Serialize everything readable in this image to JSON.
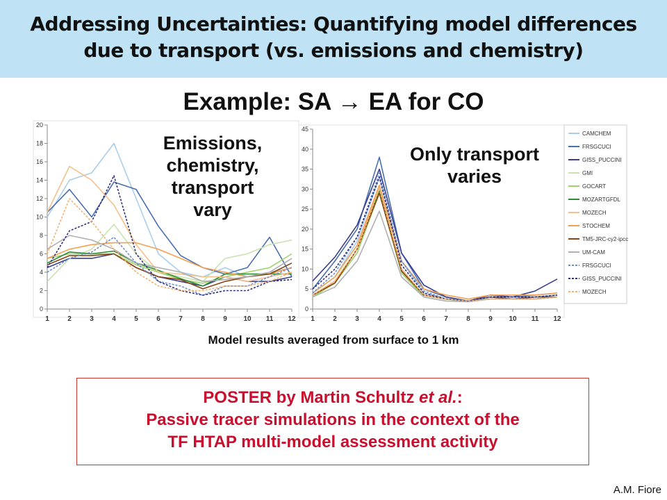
{
  "header": {
    "line1": "Addressing Uncertainties: Quantifying model differences",
    "line2": "due to transport (vs. emissions and chemistry)"
  },
  "example_title": "Example: SA → EA for CO",
  "annotations": {
    "left": [
      "Emissions,",
      "chemistry,",
      "transport",
      "vary"
    ],
    "right": [
      "Only transport",
      "varies"
    ]
  },
  "caption": "Model results averaged from surface to 1 km",
  "poster": {
    "line1_prefix": "POSTER by Martin Schultz ",
    "line1_italic": "et al.",
    "line1_suffix": ":",
    "line2": "Passive tracer simulations in the context of the",
    "line3": "TF HTAP multi-model assessment activity"
  },
  "footer": "A.M. Fiore",
  "chart_data": [
    {
      "type": "line",
      "x": [
        1,
        2,
        3,
        4,
        5,
        6,
        7,
        8,
        9,
        10,
        11,
        12
      ],
      "ylim": [
        0,
        20
      ],
      "yticks": [
        0,
        2,
        4,
        6,
        8,
        10,
        12,
        14,
        16,
        18,
        20
      ],
      "series": [
        {
          "color": "#a9cdea",
          "dash": false,
          "values": [
            10,
            14,
            14.8,
            18,
            12,
            6,
            4,
            3.5,
            4.5,
            3.5,
            4,
            4.5
          ]
        },
        {
          "color": "#4a6fb0",
          "dash": false,
          "values": [
            10.5,
            13,
            10,
            13.8,
            13,
            9,
            5.8,
            4.5,
            3.8,
            4.5,
            7.8,
            3.5
          ]
        },
        {
          "color": "#3b3f8f",
          "dash": false,
          "values": [
            4.5,
            5.5,
            5.5,
            6,
            4.5,
            3.5,
            3,
            2.5,
            3.5,
            3,
            3,
            3.5
          ]
        },
        {
          "color": "#c8e2b0",
          "dash": false,
          "values": [
            3,
            5.5,
            6.5,
            9.2,
            6,
            4,
            3.5,
            3,
            5.5,
            6,
            7,
            7.5
          ]
        },
        {
          "color": "#9fd36a",
          "dash": false,
          "values": [
            5.5,
            6,
            6,
            6,
            4.8,
            4,
            3.2,
            2.8,
            3.5,
            4,
            4.5,
            6
          ]
        },
        {
          "color": "#2e8b3a",
          "dash": false,
          "values": [
            5,
            6.2,
            6,
            6.3,
            5,
            4.2,
            3.3,
            2.5,
            3.8,
            3.8,
            3.8,
            3.8
          ]
        },
        {
          "color": "#f5c08a",
          "dash": false,
          "values": [
            10.5,
            15.5,
            14,
            11.3,
            7,
            4,
            3.8,
            3.5,
            3.5,
            3,
            3.5,
            4
          ]
        },
        {
          "color": "#f5a050",
          "dash": false,
          "values": [
            5.5,
            6.5,
            7,
            7.2,
            7.2,
            6.5,
            5.5,
            4.5,
            4,
            3.5,
            3.8,
            4.5
          ]
        },
        {
          "color": "#8b4513",
          "dash": false,
          "values": [
            4.8,
            5.8,
            5.8,
            6,
            4.5,
            3.5,
            3.2,
            2.2,
            3,
            3.5,
            3.8,
            5
          ]
        },
        {
          "color": "#b0b0b0",
          "dash": false,
          "values": [
            6.5,
            8,
            7.5,
            6.5,
            5,
            4.5,
            4,
            3,
            3.2,
            3.5,
            4,
            5.5
          ]
        },
        {
          "color": "#6a8fd0",
          "dash": true,
          "values": [
            4,
            5.5,
            6.2,
            7.8,
            5,
            3,
            2.5,
            1.5,
            2.5,
            2.5,
            3.5,
            4.5
          ]
        },
        {
          "color": "#30307a",
          "dash": true,
          "values": [
            4.5,
            8.5,
            9.5,
            14.5,
            6,
            3,
            2,
            1.5,
            2,
            2,
            3,
            3.2
          ]
        },
        {
          "color": "#f5b070",
          "dash": true,
          "values": [
            6,
            12,
            9.5,
            6.5,
            4,
            2.5,
            2,
            2,
            2.5,
            2.5,
            3,
            4
          ]
        }
      ]
    },
    {
      "type": "line",
      "x": [
        1,
        2,
        3,
        4,
        5,
        6,
        7,
        8,
        9,
        10,
        11,
        12
      ],
      "ylim": [
        0,
        45
      ],
      "yticks": [
        0,
        5,
        10,
        15,
        20,
        25,
        30,
        35,
        40,
        45
      ],
      "series": [
        {
          "name": "CAMCHEM",
          "color": "#a9cdea",
          "dash": false,
          "values": [
            4,
            8,
            17,
            33,
            12,
            4,
            2.5,
            2,
            3,
            3,
            3,
            3.5
          ]
        },
        {
          "name": "FRSGCUCI",
          "color": "#4a6fb0",
          "dash": false,
          "values": [
            5,
            12,
            20,
            38,
            14,
            5,
            3,
            2,
            3.5,
            3,
            3.5,
            4
          ]
        },
        {
          "name": "GISS_PUCCINI",
          "color": "#3b3f8f",
          "dash": false,
          "values": [
            7,
            13,
            21,
            35,
            14,
            6,
            3,
            2,
            3.5,
            3,
            4.5,
            7.5
          ]
        },
        {
          "name": "GMI",
          "color": "#c8e2b0",
          "dash": false,
          "values": [
            3,
            7,
            15,
            30,
            9,
            3.5,
            2.5,
            2,
            2.5,
            2.5,
            2.5,
            3
          ]
        },
        {
          "name": "GOCART",
          "color": "#9fd36a",
          "dash": false,
          "values": [
            3,
            6.5,
            14,
            29,
            9,
            3,
            2,
            2,
            2.5,
            2.5,
            2.5,
            3
          ]
        },
        {
          "name": "MOZARTGFDL",
          "color": "#2e8b3a",
          "dash": false,
          "values": [
            3.5,
            6.5,
            15,
            29.5,
            9.5,
            3.5,
            2.5,
            2,
            3,
            2.5,
            2.5,
            3
          ]
        },
        {
          "name": "MOZECH",
          "color": "#f5c08a",
          "dash": false,
          "values": [
            3.5,
            7,
            15,
            31,
            10,
            3.5,
            2.5,
            2,
            3,
            2.5,
            3,
            3
          ]
        },
        {
          "name": "STOCHEM",
          "color": "#f5a050",
          "dash": false,
          "values": [
            4,
            8,
            16,
            31,
            12,
            5,
            3.5,
            2.5,
            3.5,
            3.5,
            3.5,
            4
          ]
        },
        {
          "name": "TM5-JRC-cy2-ipcc",
          "color": "#8b4513",
          "dash": false,
          "values": [
            3.5,
            6.5,
            15,
            29,
            9.5,
            3.5,
            2.5,
            2,
            3,
            2.5,
            3,
            3
          ]
        },
        {
          "name": "UM-CAM",
          "color": "#b0b0b0",
          "dash": false,
          "values": [
            3,
            5.5,
            12,
            24.5,
            8,
            3,
            2,
            1.8,
            2.5,
            2.5,
            2.5,
            3
          ]
        },
        {
          "name": "FRSGCUCI",
          "color": "#6a8fd0",
          "dash": true,
          "values": [
            4,
            9,
            18,
            34,
            12,
            4.5,
            2.5,
            2,
            3,
            3,
            3,
            3.5
          ]
        },
        {
          "name": "GISS_PUCCINI",
          "color": "#30307a",
          "dash": true,
          "values": [
            5,
            10,
            18,
            33,
            11,
            4,
            2.5,
            2,
            3,
            3,
            3,
            3.5
          ]
        },
        {
          "name": "MOZECH",
          "color": "#f5b070",
          "dash": true,
          "values": [
            3.5,
            7,
            15,
            30,
            10,
            3.5,
            2.5,
            2,
            2.5,
            2.5,
            2.5,
            3
          ]
        }
      ]
    }
  ]
}
